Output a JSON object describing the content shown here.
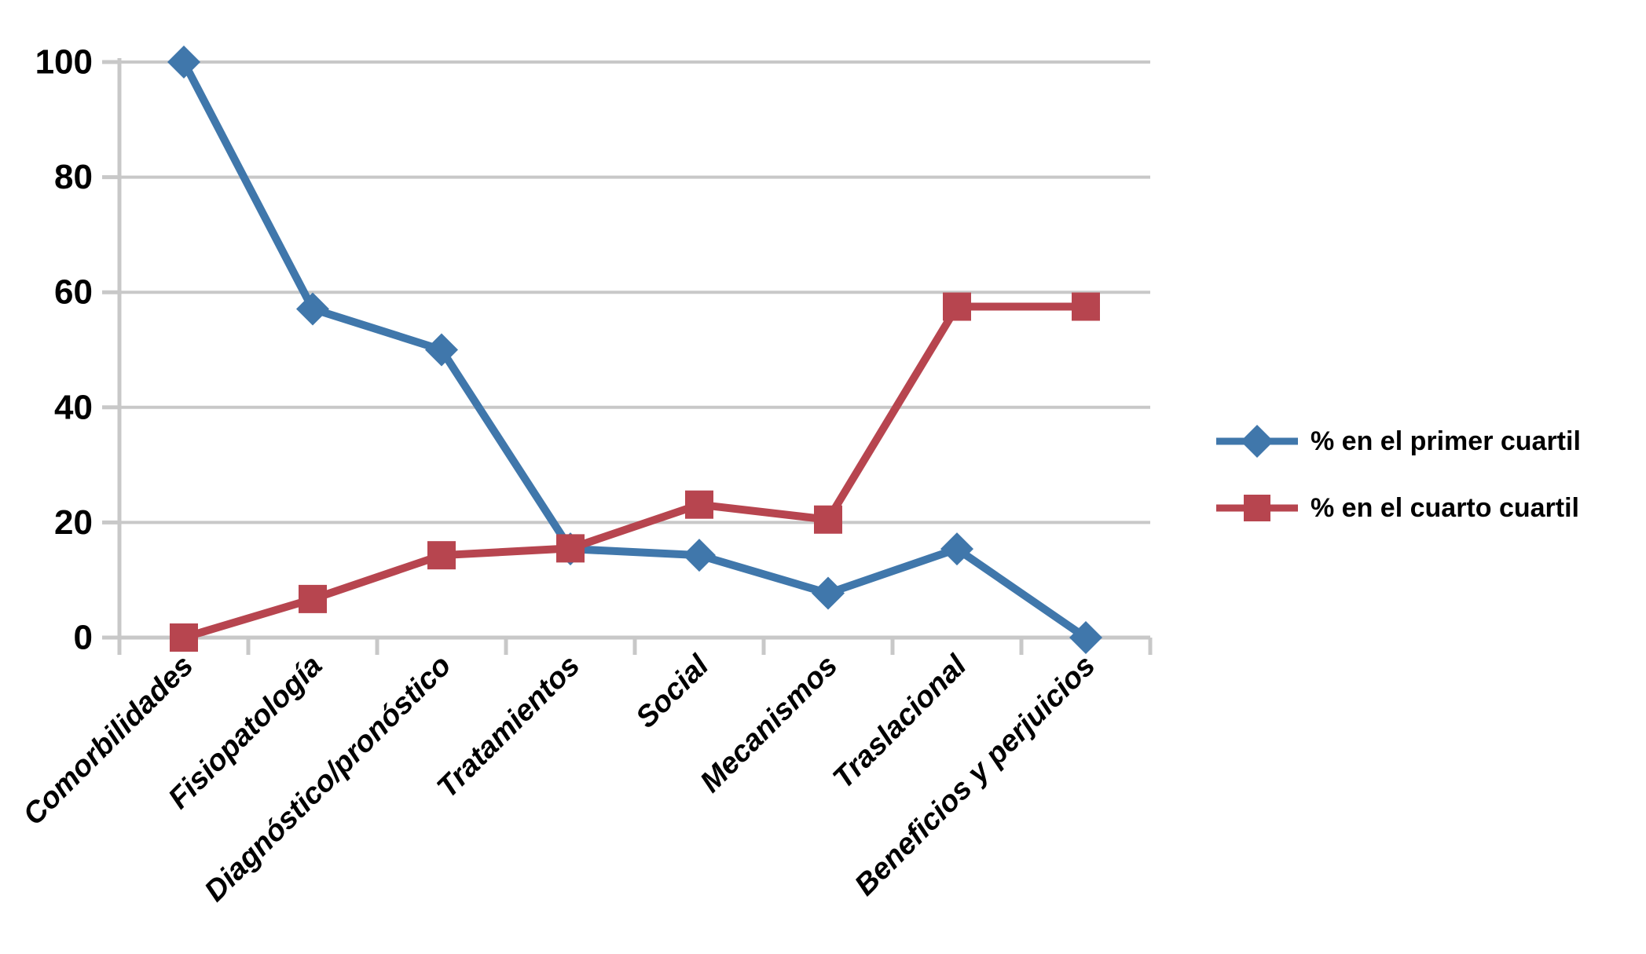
{
  "chart_data": {
    "type": "line",
    "title": "",
    "categories": [
      "Comorbilidades",
      "Fisiopatología",
      "Diagnóstico/pronóstico",
      "Tratamientos",
      "Social",
      "Mecanismos",
      "Traslacional",
      "Beneficios y perjuicios"
    ],
    "series": [
      {
        "name": "% en el primer cuartil",
        "marker": "diamond",
        "color": "#4077AB",
        "values": [
          100,
          57.1,
          50,
          15.4,
          14.3,
          7.7,
          15.4,
          0
        ]
      },
      {
        "name": "% en el cuarto cuartil",
        "marker": "square",
        "color": "#B7454F",
        "values": [
          0,
          6.7,
          14.3,
          15.5,
          23.1,
          20.5,
          57.5,
          57.5
        ]
      }
    ],
    "xlabel": "",
    "ylabel": "",
    "ylim": [
      0,
      100
    ],
    "y_ticks": [
      0,
      20,
      40,
      60,
      80,
      100
    ],
    "grid": "horizontal",
    "gridline_color": "#C8C8C8",
    "axis_color": "#C8C8C8",
    "text_color": "#000000",
    "legend_position": "right",
    "background_color": "#FFFFFF"
  }
}
